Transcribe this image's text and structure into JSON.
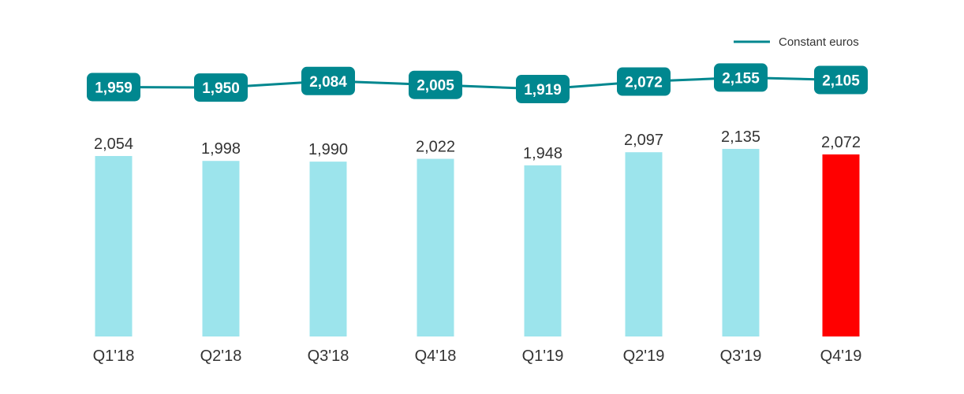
{
  "chart_data": {
    "type": "bar",
    "categories": [
      "Q1'18",
      "Q2'18",
      "Q3'18",
      "Q4'18",
      "Q1'19",
      "Q2'19",
      "Q3'19",
      "Q4'19"
    ],
    "series": [
      {
        "type": "bar",
        "values": [
          2054,
          1998,
          1990,
          2022,
          1948,
          2097,
          2135,
          2072
        ],
        "labels": [
          "2,054",
          "1,998",
          "1,990",
          "2,022",
          "1,948",
          "2,097",
          "2,135",
          "2,072"
        ]
      },
      {
        "name": "Constant euros",
        "type": "line",
        "values": [
          1959,
          1950,
          2084,
          2005,
          1919,
          2072,
          2155,
          2105
        ],
        "labels": [
          "1,959",
          "1,950",
          "2,084",
          "2,005",
          "1,919",
          "2,072",
          "2,155",
          "2,105"
        ]
      }
    ],
    "colors": {
      "bar": "#9ce4ec",
      "highlight_bar": "#ff0000",
      "line": "#00878f",
      "pill": "#00878f"
    },
    "highlight_index": 7,
    "legend_position": "top-right",
    "grid": false
  }
}
